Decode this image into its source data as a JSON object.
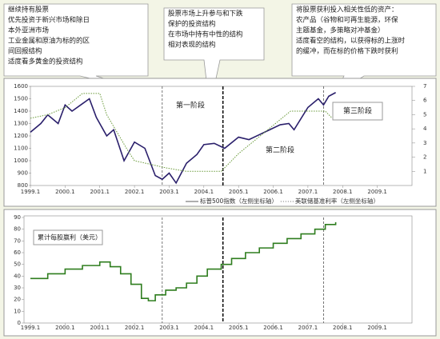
{
  "callouts": [
    {
      "lines": [
        "继续持有股票",
        "优先投资于新兴市场和除日",
        "本外亚洲市场",
        "工业金属和原油为标的的区",
        "间回报结构",
        "适度看多黄金的投资结构"
      ]
    },
    {
      "lines": [
        "股票市场上升参与和下跌",
        "保护的投资结构",
        "在市场中持有中性的结构",
        "相对表现的结构"
      ]
    },
    {
      "lines": [
        "将股票获利投入相关性低的资产：",
        "农产品（谷物和可再生能源，环保",
        "主题基金，多策略对冲基金）",
        "适度看空的结构，以获得标的上涨时",
        "的缓冲，而在标的价格下跌时获利"
      ]
    }
  ],
  "chart_data": [
    {
      "type": "line",
      "annotations": [
        "第一阶段",
        "第二阶段",
        "第三阶段"
      ],
      "markers": [
        2002.8,
        2004.55,
        2007.45
      ],
      "xlim": [
        1999,
        2010
      ],
      "xticks": [
        {
          "value": 1999,
          "label": "1999.1"
        },
        {
          "value": 2000,
          "label": "2000.1"
        },
        {
          "value": 2001,
          "label": "2001.1"
        },
        {
          "value": 2002,
          "label": "2002.1"
        },
        {
          "value": 2003,
          "label": "2003.1"
        },
        {
          "value": 2004,
          "label": "2004.1"
        },
        {
          "value": 2005,
          "label": "2005.1"
        },
        {
          "value": 2006,
          "label": "2006.1"
        },
        {
          "value": 2007,
          "label": "2007.1"
        },
        {
          "value": 2008,
          "label": "2008.1"
        },
        {
          "value": 2009,
          "label": "2009.1"
        }
      ],
      "ylim": [
        800,
        1600
      ],
      "yticks": [
        800,
        900,
        1000,
        1100,
        1200,
        1300,
        1400,
        1500,
        1600
      ],
      "y2lim": [
        0,
        7
      ],
      "y2ticks": [
        1,
        2,
        3,
        4,
        5,
        6,
        7
      ],
      "series": [
        {
          "name": "标普500指数（左侧坐标轴）",
          "color": "#2a1f6b",
          "style": "solid",
          "x": [
            1999.0,
            1999.3,
            1999.5,
            1999.8,
            2000.0,
            2000.2,
            2000.5,
            2000.7,
            2000.9,
            2001.2,
            2001.4,
            2001.7,
            2002.0,
            2002.3,
            2002.6,
            2002.8,
            2003.0,
            2003.2,
            2003.5,
            2003.8,
            2004.0,
            2004.3,
            2004.6,
            2005.0,
            2005.3,
            2005.6,
            2005.9,
            2006.2,
            2006.45,
            2006.6,
            2007.0,
            2007.3,
            2007.45,
            2007.6,
            2007.8
          ],
          "values": [
            1230,
            1300,
            1370,
            1300,
            1450,
            1400,
            1460,
            1500,
            1350,
            1200,
            1250,
            1000,
            1150,
            1100,
            880,
            850,
            900,
            820,
            980,
            1050,
            1130,
            1140,
            1100,
            1190,
            1170,
            1210,
            1250,
            1290,
            1300,
            1250,
            1430,
            1500,
            1450,
            1520,
            1550
          ]
        },
        {
          "name": "美联储基准利率（左侧坐标轴）",
          "color": "#6a9a3a",
          "style": "dotted",
          "axis": "y2",
          "x": [
            1999.0,
            1999.5,
            2000.0,
            2000.5,
            2001.0,
            2001.2,
            2001.8,
            2002.0,
            2002.9,
            2003.5,
            2004.5,
            2005.0,
            2005.5,
            2006.0,
            2006.5,
            2007.5,
            2007.7
          ],
          "values": [
            4.75,
            5.0,
            5.5,
            6.5,
            6.5,
            5.0,
            2.5,
            1.75,
            1.25,
            1.0,
            1.0,
            2.25,
            3.25,
            4.25,
            5.25,
            5.25,
            4.75
          ]
        }
      ]
    },
    {
      "type": "line",
      "title": "累计每股赢利（美元）",
      "markers": [
        2002.8,
        2004.55,
        2007.45
      ],
      "xlim": [
        1999,
        2010
      ],
      "xticks": [
        {
          "value": 1999,
          "label": "1999.1"
        },
        {
          "value": 2000,
          "label": "2000.1"
        },
        {
          "value": 2001,
          "label": "2001.1"
        },
        {
          "value": 2002,
          "label": "2002.1"
        },
        {
          "value": 2003,
          "label": "2003.1"
        },
        {
          "value": 2004,
          "label": "2004.1"
        },
        {
          "value": 2005,
          "label": "2005.1"
        },
        {
          "value": 2006,
          "label": "2006.1"
        },
        {
          "value": 2007,
          "label": "2007.1"
        },
        {
          "value": 2008,
          "label": "2008.1"
        },
        {
          "value": 2009,
          "label": "2009.1"
        }
      ],
      "ylim": [
        0,
        90
      ],
      "yticks": [
        0,
        10,
        20,
        30,
        40,
        50,
        60,
        70,
        80,
        90
      ],
      "series": [
        {
          "color": "#2e7d1e",
          "style": "step",
          "x": [
            1999.0,
            1999.5,
            2000.0,
            2000.5,
            2001.0,
            2001.3,
            2001.6,
            2001.9,
            2002.2,
            2002.4,
            2002.6,
            2002.9,
            2003.2,
            2003.5,
            2003.8,
            2004.1,
            2004.5,
            2004.8,
            2005.2,
            2005.6,
            2006.0,
            2006.4,
            2006.8,
            2007.2,
            2007.5,
            2007.8
          ],
          "values": [
            38,
            42,
            46,
            49,
            52,
            48,
            42,
            33,
            21,
            19,
            24,
            28,
            30,
            34,
            40,
            46,
            50,
            55,
            60,
            64,
            68,
            72,
            76,
            80,
            84,
            86
          ]
        }
      ]
    }
  ]
}
